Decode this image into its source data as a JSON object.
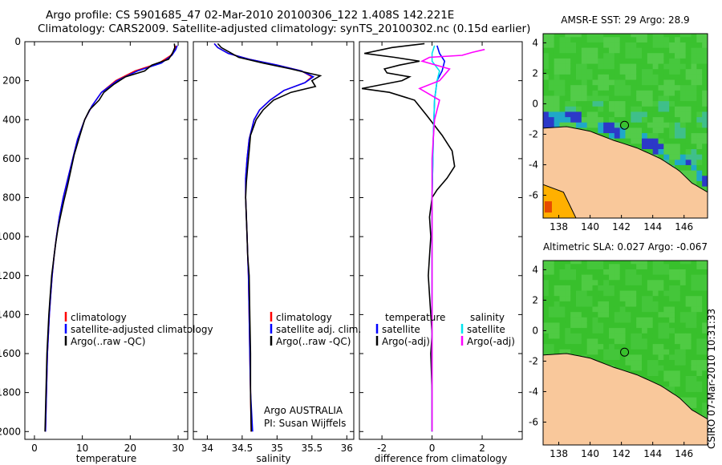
{
  "titles": {
    "line1": "Argo profile: CS 5901685_47 02-Mar-2010 20100306_122 1.408S 142.221E",
    "line2": "Climatology: CARS2009. Satellite-adjusted climatology: synTS_20100302.nc (0.15d earlier)"
  },
  "side_label": "CSIRO 07-Mar-2010 10:31:33",
  "colors": {
    "climatology": "#ff0000",
    "satellite": "#0000ff",
    "argo": "#000000",
    "sal_satellite": "#00e5ee",
    "sal_argo": "#ff00ff",
    "land": "#f9c89b",
    "ocean_green": "#33cc33"
  },
  "annotations": {
    "panel2_a": "Argo AUSTRALIA",
    "panel2_b": "PI: Susan Wijffels"
  },
  "chart_data": [
    {
      "type": "line",
      "xlabel": "temperature",
      "ylabel": "",
      "xlim": [
        -2,
        32
      ],
      "ylim": [
        2040,
        0
      ],
      "xticks": [
        0,
        10,
        20,
        30
      ],
      "yticks": [
        0,
        200,
        400,
        600,
        800,
        1000,
        1200,
        1400,
        1600,
        1800,
        2000
      ],
      "legend": [
        {
          "label": "climatology",
          "color": "#ff0000"
        },
        {
          "label": "satellite-adjusted climatology",
          "color": "#0000ff"
        },
        {
          "label": "Argo(..raw -QC)",
          "color": "#000000"
        }
      ],
      "series": [
        {
          "name": "climatology",
          "color": "#ff0000",
          "points": [
            [
              29.5,
              20
            ],
            [
              29.3,
              40
            ],
            [
              28.5,
              70
            ],
            [
              26,
              110
            ],
            [
              21,
              150
            ],
            [
              17,
              200
            ],
            [
              14,
              260
            ],
            [
              12,
              330
            ],
            [
              10.5,
              400
            ],
            [
              9,
              500
            ],
            [
              8,
              600
            ],
            [
              7,
              700
            ],
            [
              6,
              800
            ],
            [
              5.2,
              900
            ],
            [
              4.6,
              1000
            ],
            [
              4.1,
              1100
            ],
            [
              3.7,
              1200
            ],
            [
              3.4,
              1300
            ],
            [
              3.1,
              1400
            ],
            [
              2.9,
              1500
            ],
            [
              2.7,
              1600
            ],
            [
              2.6,
              1700
            ],
            [
              2.5,
              1800
            ],
            [
              2.4,
              1900
            ],
            [
              2.3,
              2000
            ]
          ]
        },
        {
          "name": "satellite-adjusted climatology",
          "color": "#0000ff",
          "points": [
            [
              29.8,
              20
            ],
            [
              29.5,
              40
            ],
            [
              28.7,
              70
            ],
            [
              26.5,
              110
            ],
            [
              21.5,
              150
            ],
            [
              17.3,
              200
            ],
            [
              14,
              260
            ],
            [
              12,
              330
            ],
            [
              10.5,
              400
            ],
            [
              9,
              500
            ],
            [
              8,
              600
            ],
            [
              7,
              700
            ],
            [
              6,
              800
            ],
            [
              5.2,
              900
            ],
            [
              4.6,
              1000
            ],
            [
              4.1,
              1100
            ],
            [
              3.7,
              1200
            ],
            [
              3.4,
              1300
            ],
            [
              3.1,
              1400
            ],
            [
              2.9,
              1500
            ],
            [
              2.7,
              1600
            ],
            [
              2.6,
              1700
            ],
            [
              2.5,
              1800
            ],
            [
              2.4,
              1900
            ],
            [
              2.3,
              2000
            ]
          ]
        },
        {
          "name": "Argo(..raw -QC)",
          "color": "#000000",
          "points": [
            [
              29.2,
              10
            ],
            [
              29.3,
              30
            ],
            [
              28.8,
              60
            ],
            [
              28,
              90
            ],
            [
              24.5,
              120
            ],
            [
              23,
              150
            ],
            [
              19,
              180
            ],
            [
              16.5,
              220
            ],
            [
              14.5,
              260
            ],
            [
              13.5,
              300
            ],
            [
              11.5,
              350
            ],
            [
              10.5,
              400
            ],
            [
              9.5,
              480
            ],
            [
              8.3,
              580
            ],
            [
              7.6,
              660
            ],
            [
              6.9,
              740
            ],
            [
              6.1,
              820
            ],
            [
              5.4,
              900
            ],
            [
              4.9,
              960
            ],
            [
              4.4,
              1040
            ],
            [
              4,
              1120
            ],
            [
              3.6,
              1200
            ],
            [
              3.3,
              1300
            ],
            [
              3,
              1400
            ],
            [
              2.8,
              1500
            ],
            [
              2.6,
              1600
            ],
            [
              2.5,
              1700
            ],
            [
              2.4,
              1800
            ],
            [
              2.3,
              1900
            ],
            [
              2.2,
              2000
            ]
          ]
        }
      ]
    },
    {
      "type": "line",
      "xlabel": "salinity",
      "ylabel": "",
      "xlim": [
        33.8,
        36.1
      ],
      "ylim": [
        2040,
        0
      ],
      "xticks": [
        34,
        34.5,
        35,
        35.5,
        36
      ],
      "legend": [
        {
          "label": "climatology",
          "color": "#ff0000"
        },
        {
          "label": "satellite adj. clim.",
          "color": "#0000ff"
        },
        {
          "label": "Argo(..raw -QC)",
          "color": "#000000"
        }
      ],
      "series": [
        {
          "name": "climatology",
          "color": "#ff0000",
          "points": [
            [
              34.1,
              10
            ],
            [
              34.15,
              30
            ],
            [
              34.3,
              60
            ],
            [
              34.6,
              90
            ],
            [
              35,
              120
            ],
            [
              35.35,
              150
            ],
            [
              35.5,
              180
            ],
            [
              35.4,
              210
            ],
            [
              35.1,
              250
            ],
            [
              34.9,
              300
            ],
            [
              34.75,
              350
            ],
            [
              34.67,
              400
            ],
            [
              34.6,
              500
            ],
            [
              34.57,
              600
            ],
            [
              34.55,
              700
            ],
            [
              34.55,
              800
            ],
            [
              34.56,
              900
            ],
            [
              34.57,
              1000
            ],
            [
              34.58,
              1100
            ],
            [
              34.59,
              1200
            ],
            [
              34.6,
              1400
            ],
            [
              34.61,
              1600
            ],
            [
              34.62,
              1800
            ],
            [
              34.63,
              2000
            ]
          ]
        },
        {
          "name": "satellite adj. clim.",
          "color": "#0000ff",
          "points": [
            [
              34.1,
              10
            ],
            [
              34.15,
              30
            ],
            [
              34.3,
              60
            ],
            [
              34.6,
              90
            ],
            [
              35,
              120
            ],
            [
              35.35,
              150
            ],
            [
              35.52,
              180
            ],
            [
              35.4,
              210
            ],
            [
              35.1,
              250
            ],
            [
              34.9,
              300
            ],
            [
              34.75,
              350
            ],
            [
              34.67,
              400
            ],
            [
              34.6,
              500
            ],
            [
              34.57,
              600
            ],
            [
              34.55,
              700
            ],
            [
              34.55,
              800
            ],
            [
              34.56,
              900
            ],
            [
              34.57,
              1000
            ],
            [
              34.58,
              1100
            ],
            [
              34.59,
              1200
            ],
            [
              34.6,
              1400
            ],
            [
              34.61,
              1600
            ],
            [
              34.62,
              1800
            ],
            [
              34.65,
              2000
            ]
          ]
        },
        {
          "name": "Argo(..raw -QC)",
          "color": "#000000",
          "points": [
            [
              34.15,
              10
            ],
            [
              34.2,
              30
            ],
            [
              34.3,
              50
            ],
            [
              34.45,
              80
            ],
            [
              34.8,
              110
            ],
            [
              35.2,
              140
            ],
            [
              35.5,
              165
            ],
            [
              35.62,
              175
            ],
            [
              35.5,
              200
            ],
            [
              35.55,
              230
            ],
            [
              35.2,
              260
            ],
            [
              34.95,
              300
            ],
            [
              34.8,
              350
            ],
            [
              34.7,
              400
            ],
            [
              34.62,
              480
            ],
            [
              34.6,
              560
            ],
            [
              34.58,
              640
            ],
            [
              34.56,
              720
            ],
            [
              34.55,
              800
            ],
            [
              34.56,
              900
            ],
            [
              34.57,
              1000
            ],
            [
              34.58,
              1100
            ],
            [
              34.6,
              1200
            ],
            [
              34.61,
              1400
            ],
            [
              34.62,
              1600
            ],
            [
              34.62,
              1800
            ],
            [
              34.63,
              2000
            ]
          ]
        }
      ]
    },
    {
      "type": "line",
      "xlabel": "difference from climatology",
      "ylabel": "",
      "xlim": [
        -2.9,
        3.6
      ],
      "ylim": [
        2040,
        0
      ],
      "xticks": [
        -2,
        0,
        2
      ],
      "legend": [
        {
          "label": "temperature",
          "color": ""
        },
        {
          "label": "satellite",
          "color": "#0000ff"
        },
        {
          "label": "Argo(-adj)",
          "color": "#000000"
        },
        {
          "label": "salinity",
          "color": ""
        },
        {
          "label": "satellite",
          "color": "#00e5ee"
        },
        {
          "label": "Argo(-adj)",
          "color": "#ff00ff"
        }
      ],
      "series": [
        {
          "name": "temperature satellite",
          "color": "#0000ff",
          "points": [
            [
              0.2,
              20
            ],
            [
              0.3,
              60
            ],
            [
              0.5,
              100
            ],
            [
              0.4,
              150
            ],
            [
              0.2,
              200
            ],
            [
              0.1,
              300
            ],
            [
              0.05,
              500
            ],
            [
              0,
              800
            ],
            [
              0,
              1200
            ],
            [
              0,
              1600
            ],
            [
              0,
              2000
            ]
          ]
        },
        {
          "name": "temperature Argo(-adj)",
          "color": "#000000",
          "points": [
            [
              -0.3,
              10
            ],
            [
              -1.6,
              30
            ],
            [
              -2.7,
              60
            ],
            [
              -1.5,
              80
            ],
            [
              -0.5,
              100
            ],
            [
              -1.3,
              120
            ],
            [
              -1.9,
              140
            ],
            [
              -1.8,
              160
            ],
            [
              -0.9,
              180
            ],
            [
              -1.2,
              200
            ],
            [
              -2.0,
              220
            ],
            [
              -2.8,
              240
            ],
            [
              -1.7,
              260
            ],
            [
              -0.7,
              300
            ],
            [
              -0.2,
              380
            ],
            [
              0.4,
              480
            ],
            [
              0.8,
              560
            ],
            [
              0.9,
              640
            ],
            [
              0.6,
              700
            ],
            [
              0.2,
              760
            ],
            [
              0,
              800
            ],
            [
              -0.1,
              900
            ],
            [
              -0.05,
              1000
            ],
            [
              -0.1,
              1100
            ],
            [
              -0.15,
              1200
            ],
            [
              -0.1,
              1300
            ],
            [
              -0.05,
              1400
            ],
            [
              0,
              1500
            ],
            [
              -0.05,
              1600
            ],
            [
              0,
              1800
            ],
            [
              0,
              2000
            ]
          ]
        },
        {
          "name": "salinity satellite",
          "color": "#00e5ee",
          "points": [
            [
              0.1,
              20
            ],
            [
              0,
              60
            ],
            [
              0,
              100
            ],
            [
              0.3,
              150
            ],
            [
              0.2,
              200
            ],
            [
              0.1,
              300
            ],
            [
              0.05,
              500
            ],
            [
              0,
              800
            ],
            [
              0,
              1200
            ],
            [
              0,
              1600
            ],
            [
              0,
              2000
            ]
          ]
        },
        {
          "name": "salinity Argo(-adj)",
          "color": "#ff00ff",
          "points": [
            [
              2.1,
              40
            ],
            [
              1.6,
              55
            ],
            [
              1.2,
              70
            ],
            [
              -0.1,
              80
            ],
            [
              -0.4,
              100
            ],
            [
              0.7,
              140
            ],
            [
              0.5,
              170
            ],
            [
              0.3,
              200
            ],
            [
              -0.5,
              240
            ],
            [
              0.3,
              300
            ],
            [
              0.1,
              400
            ],
            [
              0.05,
              500
            ],
            [
              0,
              600
            ],
            [
              0,
              800
            ],
            [
              0,
              1000
            ],
            [
              0,
              1200
            ],
            [
              0,
              1600
            ],
            [
              0,
              2000
            ]
          ]
        }
      ]
    },
    {
      "type": "heatmap",
      "title": "AMSR-E SST: 29 Argo: 28.9",
      "xlim": [
        137,
        147.5
      ],
      "ylim": [
        -7.5,
        4.6
      ],
      "xticks": [
        138,
        140,
        142,
        144,
        146
      ],
      "yticks": [
        -6,
        -4,
        -2,
        0,
        2,
        4
      ],
      "argo_position": [
        142.2,
        -1.41
      ]
    },
    {
      "type": "heatmap",
      "title": "Altimetric SLA: 0.027 Argo: -0.067",
      "xlim": [
        137,
        147.5
      ],
      "ylim": [
        -7.5,
        4.6
      ],
      "xticks": [
        138,
        140,
        142,
        144,
        146
      ],
      "yticks": [
        -6,
        -4,
        -2,
        0,
        2,
        4
      ],
      "argo_position": [
        142.2,
        -1.41
      ]
    }
  ]
}
